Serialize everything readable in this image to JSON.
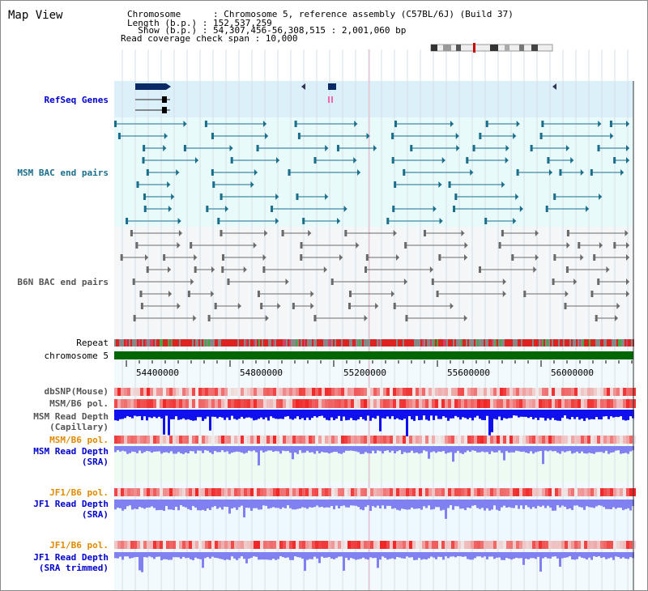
{
  "view": {
    "title": "Map View",
    "header": {
      "chromosome": "Chromosome      : Chromosome 5, reference assembly (C57BL/6J) (Build 37)",
      "length": "Length (b.p.) : 152,537,259",
      "show": "  Show (b.p.) : 54,307,456-56,308,515 : 2,001,060 bp",
      "coverage": "Read coverage check span : 10,000"
    }
  },
  "tracks": {
    "refseq": "RefSeq Genes",
    "msm_bac": "MSM BAC end pairs",
    "b6n_bac": "B6N BAC end pairs",
    "repeat": "Repeat",
    "chromosome": "chromosome 5",
    "dbsnp": "dbSNP(Mouse)",
    "msm_pol1": "MSM/B6 pol.",
    "msm_depth_cap_1": "MSM Read Depth",
    "msm_depth_cap_2": "(Capillary)",
    "msm_pol2": "MSM/B6 pol.",
    "msm_depth_sra_1": "MSM Read Depth",
    "msm_depth_sra_2": "(SRA)",
    "jf1_pol1": "JF1/B6 pol.",
    "jf1_depth_sra_1": "JF1 Read Depth",
    "jf1_depth_sra_2": "(SRA)",
    "jf1_pol2": "JF1/B6 pol.",
    "jf1_depth_trim_1": "JF1 Read Depth",
    "jf1_depth_trim_2": "(SRA trimmed)"
  },
  "axis": {
    "ticks": [
      "54400000",
      "54800000",
      "55200000",
      "55600000",
      "56000000"
    ]
  },
  "colors": {
    "refseq_band": "#dcf0fa",
    "msm_band": "#e8fafa",
    "b6n_band": "#f4f6f8",
    "chromosome_bar": "#006600",
    "depth_blue": "#1010ee",
    "depth_light": "#8080f0",
    "pol_red": "#ee3333"
  }
}
